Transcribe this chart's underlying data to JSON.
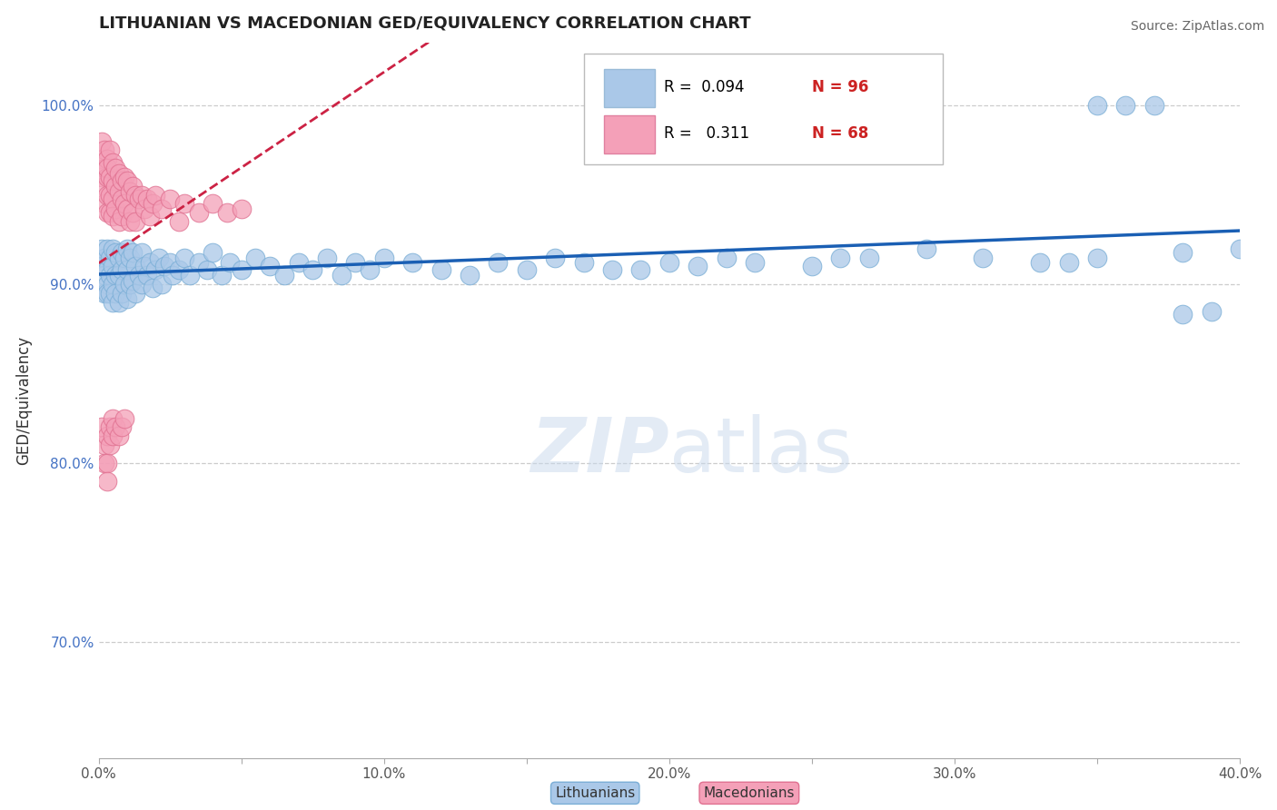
{
  "title": "LITHUANIAN VS MACEDONIAN GED/EQUIVALENCY CORRELATION CHART",
  "source": "Source: ZipAtlas.com",
  "ylabel": "GED/Equivalency",
  "xlabel_label_lith": "Lithuanians",
  "xlabel_label_mac": "Macedonians",
  "xmin": 0.0,
  "xmax": 0.4,
  "ymin": 0.635,
  "ymax": 1.035,
  "xticks": [
    0.0,
    0.05,
    0.1,
    0.15,
    0.2,
    0.25,
    0.3,
    0.35,
    0.4
  ],
  "yticks": [
    0.7,
    0.8,
    0.9,
    1.0
  ],
  "ytick_labels": [
    "70.0%",
    "80.0%",
    "90.0%",
    "100.0%"
  ],
  "xtick_labels": [
    "0.0%",
    "",
    "10.0%",
    "",
    "20.0%",
    "",
    "30.0%",
    "",
    "40.0%"
  ],
  "legend_r_lith": "0.094",
  "legend_n_lith": "96",
  "legend_r_mac": "0.311",
  "legend_n_mac": "68",
  "color_lith": "#aac8e8",
  "color_lith_edge": "#7aaed6",
  "color_mac": "#f4a0b8",
  "color_mac_edge": "#e07090",
  "color_trend_lith": "#1a5fb4",
  "color_trend_mac": "#cc2244",
  "color_grid": "#cccccc",
  "watermark_zip": "ZIP",
  "watermark_atlas": "atlas",
  "lith_x": [
    0.001,
    0.001,
    0.002,
    0.002,
    0.002,
    0.003,
    0.003,
    0.003,
    0.003,
    0.004,
    0.004,
    0.004,
    0.005,
    0.005,
    0.005,
    0.005,
    0.006,
    0.006,
    0.006,
    0.007,
    0.007,
    0.007,
    0.008,
    0.008,
    0.008,
    0.009,
    0.009,
    0.01,
    0.01,
    0.01,
    0.011,
    0.011,
    0.012,
    0.012,
    0.013,
    0.013,
    0.014,
    0.015,
    0.015,
    0.016,
    0.017,
    0.018,
    0.019,
    0.02,
    0.021,
    0.022,
    0.023,
    0.025,
    0.026,
    0.028,
    0.03,
    0.032,
    0.035,
    0.038,
    0.04,
    0.043,
    0.046,
    0.05,
    0.055,
    0.06,
    0.065,
    0.07,
    0.075,
    0.08,
    0.085,
    0.09,
    0.095,
    0.1,
    0.11,
    0.12,
    0.13,
    0.14,
    0.15,
    0.16,
    0.17,
    0.18,
    0.2,
    0.22,
    0.25,
    0.27,
    0.29,
    0.31,
    0.33,
    0.35,
    0.36,
    0.37,
    0.38,
    0.39,
    0.4,
    0.38,
    0.35,
    0.34,
    0.19,
    0.21,
    0.23,
    0.26
  ],
  "lith_y": [
    0.92,
    0.91,
    0.915,
    0.905,
    0.895,
    0.92,
    0.908,
    0.9,
    0.895,
    0.915,
    0.905,
    0.895,
    0.92,
    0.91,
    0.9,
    0.89,
    0.918,
    0.905,
    0.895,
    0.915,
    0.905,
    0.89,
    0.918,
    0.908,
    0.895,
    0.915,
    0.9,
    0.92,
    0.908,
    0.892,
    0.915,
    0.9,
    0.918,
    0.902,
    0.91,
    0.895,
    0.905,
    0.918,
    0.9,
    0.91,
    0.905,
    0.912,
    0.898,
    0.908,
    0.915,
    0.9,
    0.91,
    0.912,
    0.905,
    0.908,
    0.915,
    0.905,
    0.912,
    0.908,
    0.918,
    0.905,
    0.912,
    0.908,
    0.915,
    0.91,
    0.905,
    0.912,
    0.908,
    0.915,
    0.905,
    0.912,
    0.908,
    0.915,
    0.912,
    0.908,
    0.905,
    0.912,
    0.908,
    0.915,
    0.912,
    0.908,
    0.912,
    0.915,
    0.91,
    0.915,
    0.92,
    0.915,
    0.912,
    1.0,
    1.0,
    1.0,
    0.883,
    0.885,
    0.92,
    0.918,
    0.915,
    0.912,
    0.908,
    0.91,
    0.912,
    0.915
  ],
  "mac_x": [
    0.001,
    0.001,
    0.001,
    0.002,
    0.002,
    0.002,
    0.002,
    0.003,
    0.003,
    0.003,
    0.003,
    0.003,
    0.004,
    0.004,
    0.004,
    0.004,
    0.005,
    0.005,
    0.005,
    0.005,
    0.006,
    0.006,
    0.006,
    0.007,
    0.007,
    0.007,
    0.008,
    0.008,
    0.008,
    0.009,
    0.009,
    0.01,
    0.01,
    0.011,
    0.011,
    0.012,
    0.012,
    0.013,
    0.013,
    0.014,
    0.015,
    0.016,
    0.017,
    0.018,
    0.019,
    0.02,
    0.022,
    0.025,
    0.028,
    0.03,
    0.035,
    0.04,
    0.045,
    0.05,
    0.001,
    0.002,
    0.002,
    0.003,
    0.003,
    0.003,
    0.004,
    0.004,
    0.005,
    0.005,
    0.006,
    0.007,
    0.008,
    0.009
  ],
  "mac_y": [
    0.97,
    0.96,
    0.98,
    0.965,
    0.975,
    0.955,
    0.945,
    0.97,
    0.96,
    0.95,
    0.94,
    0.965,
    0.975,
    0.96,
    0.95,
    0.94,
    0.968,
    0.958,
    0.948,
    0.938,
    0.965,
    0.955,
    0.942,
    0.962,
    0.952,
    0.935,
    0.958,
    0.948,
    0.938,
    0.96,
    0.945,
    0.958,
    0.942,
    0.952,
    0.935,
    0.955,
    0.94,
    0.95,
    0.935,
    0.948,
    0.95,
    0.942,
    0.948,
    0.938,
    0.945,
    0.95,
    0.942,
    0.948,
    0.935,
    0.945,
    0.94,
    0.945,
    0.94,
    0.942,
    0.82,
    0.81,
    0.8,
    0.815,
    0.8,
    0.79,
    0.82,
    0.81,
    0.825,
    0.815,
    0.82,
    0.815,
    0.82,
    0.825
  ]
}
